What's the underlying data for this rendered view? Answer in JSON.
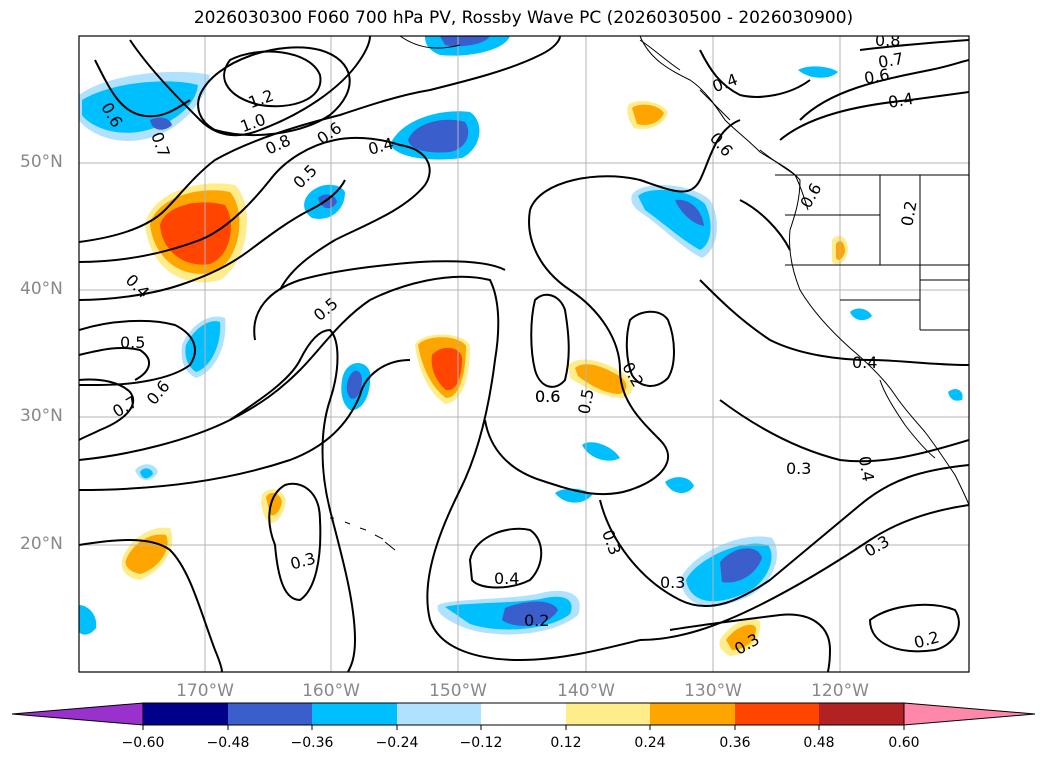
{
  "title": "2026030300 F060 700 hPa PV, Rossby Wave PC (2026030500 - 2026030900)",
  "lat_labels": [
    "50°N",
    "40°N",
    "30°N",
    "20°N"
  ],
  "lon_labels": [
    "170°W",
    "160°W",
    "150°W",
    "140°W",
    "130°W",
    "120°W"
  ],
  "contour_labels": [
    "1.2",
    "1.0",
    "0.8",
    "0.6",
    "0.5",
    "0.4",
    "0.7",
    "0.6",
    "0.4",
    "0.5",
    "0.5",
    "0.6",
    "0.7",
    "0.6",
    "0.3",
    "0.4",
    "0.2",
    "0.3",
    "0.3",
    "0.6",
    "0.5",
    "0.2",
    "0.3",
    "0.4",
    "0.4",
    "0.6",
    "0.8",
    "0.7",
    "0.6",
    "0.4",
    "0.6",
    "0.2",
    "0.4",
    "0.3",
    "0.3",
    "0.2"
  ],
  "colorbar": {
    "ticks": [
      "−0.60",
      "−0.48",
      "−0.36",
      "−0.24",
      "−0.12",
      "0.12",
      "0.24",
      "0.36",
      "0.48",
      "0.60"
    ],
    "colors": [
      "#9932cc",
      "#00008b",
      "#3a5fcd",
      "#00bfff",
      "#b0e2ff",
      "#ffffff",
      "#ffec8b",
      "#ffa500",
      "#ff4500",
      "#b22222",
      "#ff88aa"
    ]
  },
  "fill_colors": {
    "neg_light": "#b0e2ff",
    "neg_mid": "#00bfff",
    "neg_dark": "#3a5fcd",
    "pos_light": "#ffec8b",
    "pos_mid": "#ffa500",
    "pos_dark": "#ff4500"
  }
}
